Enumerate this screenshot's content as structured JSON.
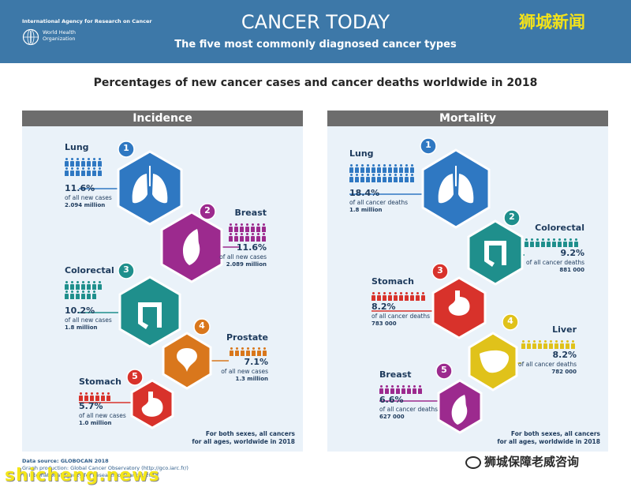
{
  "header": {
    "org_name": "International Agency for Research on Cancer",
    "who_name_line1": "World Health",
    "who_name_line2": "Organization",
    "title": "CANCER TODAY",
    "subtitle": "The five most commonly diagnosed cancer types",
    "news_badge": "狮城新闻"
  },
  "section_title": "Percentages of new cancer cases and cancer deaths worldwide in 2018",
  "incidence": {
    "heading": "Incidence",
    "items": [
      {
        "rank": "1",
        "name": "Lung",
        "percent": "11.6%",
        "desc": "of all new cases",
        "count": "2.094 million",
        "color": "#2f78c2",
        "icon": "lungs-icon"
      },
      {
        "rank": "2",
        "name": "Breast",
        "percent": "11.6%",
        "desc": "of all new cases",
        "count": "2.089 million",
        "color": "#9c2a8e",
        "icon": "breast-icon"
      },
      {
        "rank": "3",
        "name": "Colorectal",
        "percent": "10.2%",
        "desc": "of all new cases",
        "count": "1.8 million",
        "color": "#1f8f8c",
        "icon": "colon-icon"
      },
      {
        "rank": "4",
        "name": "Prostate",
        "percent": "7.1%",
        "desc": "of all new cases",
        "count": "1.3 million",
        "color": "#d9771c",
        "icon": "prostate-icon"
      },
      {
        "rank": "5",
        "name": "Stomach",
        "percent": "5.7%",
        "desc": "of all new cases",
        "count": "1.0 million",
        "color": "#d8322b",
        "icon": "stomach-icon"
      }
    ],
    "note_line1": "For both sexes, all cancers",
    "note_line2": "for all ages, worldwide in 2018"
  },
  "mortality": {
    "heading": "Mortality",
    "items": [
      {
        "rank": "1",
        "name": "Lung",
        "percent": "18.4%",
        "desc": "of all cancer deaths",
        "count": "1.8 million",
        "color": "#2f78c2",
        "icon": "lungs-icon"
      },
      {
        "rank": "2",
        "name": "Colorectal",
        "percent": "9.2%",
        "desc": "of all cancer deaths",
        "count": "881 000",
        "color": "#1f8f8c",
        "icon": "colon-icon"
      },
      {
        "rank": "3",
        "name": "Stomach",
        "percent": "8.2%",
        "desc": "of all cancer deaths",
        "count": "783 000",
        "color": "#d8322b",
        "icon": "stomach-icon"
      },
      {
        "rank": "4",
        "name": "Liver",
        "percent": "8.2%",
        "desc": "of all cancer deaths",
        "count": "782 000",
        "color": "#e0c21a",
        "icon": "liver-icon"
      },
      {
        "rank": "5",
        "name": "Breast",
        "percent": "6.6%",
        "desc": "of all cancer deaths",
        "count": "627 000",
        "color": "#9c2a8e",
        "icon": "breast-icon"
      }
    ],
    "note_line1": "For both sexes, all cancers",
    "note_line2": "for all ages, worldwide in 2018"
  },
  "footer": {
    "source_line1": "Data source: GLOBOCAN 2018",
    "source_line2": "Graph production: Global Cancer Observatory (http://gco.iarc.fr/)",
    "source_line3": "© International Agency for Research on Cancer 2018"
  },
  "watermarks": {
    "wechat": "狮城保障老威咨询",
    "site": "shicheng.news"
  }
}
